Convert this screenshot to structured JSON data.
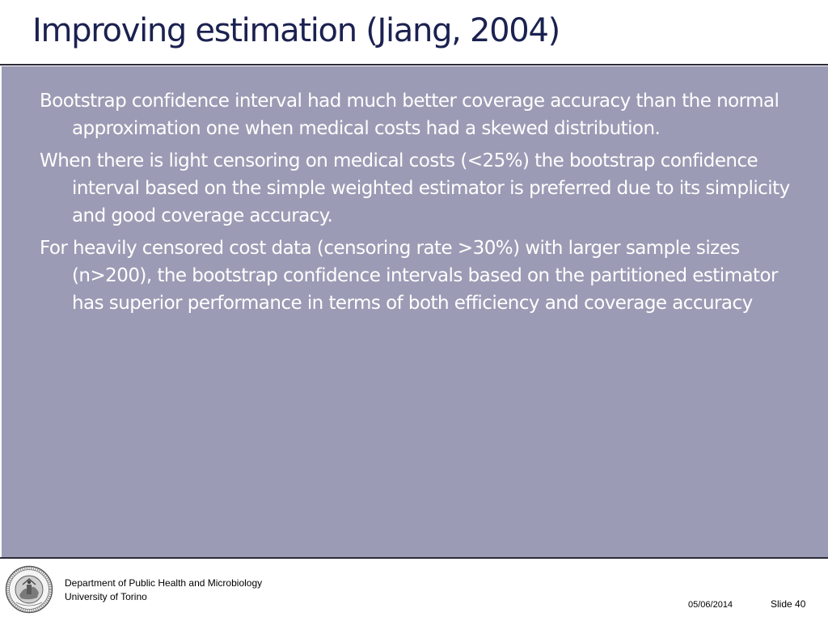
{
  "slide": {
    "title": "Improving estimation (Jiang, 2004)",
    "bullets": [
      "Bootstrap confidence interval had much better coverage accuracy than the normal approximation one when medical costs had a skewed distribution.",
      "When there is light censoring on medical costs (<25%) the bootstrap confidence interval based on the simple weighted estimator is preferred due to its simplicity and good coverage accuracy.",
      "For heavily censored cost data (censoring rate >30%) with larger sample sizes (n>200), the bootstrap confidence intervals based on the partitioned estimator has superior performance in terms of both efficiency and coverage accuracy"
    ]
  },
  "footer": {
    "department": "Department of Public Health and Microbiology",
    "university": "University of Torino",
    "date": "05/06/2014",
    "slide_label": "Slide 40"
  },
  "colors": {
    "title": "#1b2150",
    "panel_background": "#9b9bb5",
    "bullet_text": "#ffffff",
    "rule": "#2a2a3a"
  },
  "icons": {
    "logo": "university-seal-icon"
  }
}
